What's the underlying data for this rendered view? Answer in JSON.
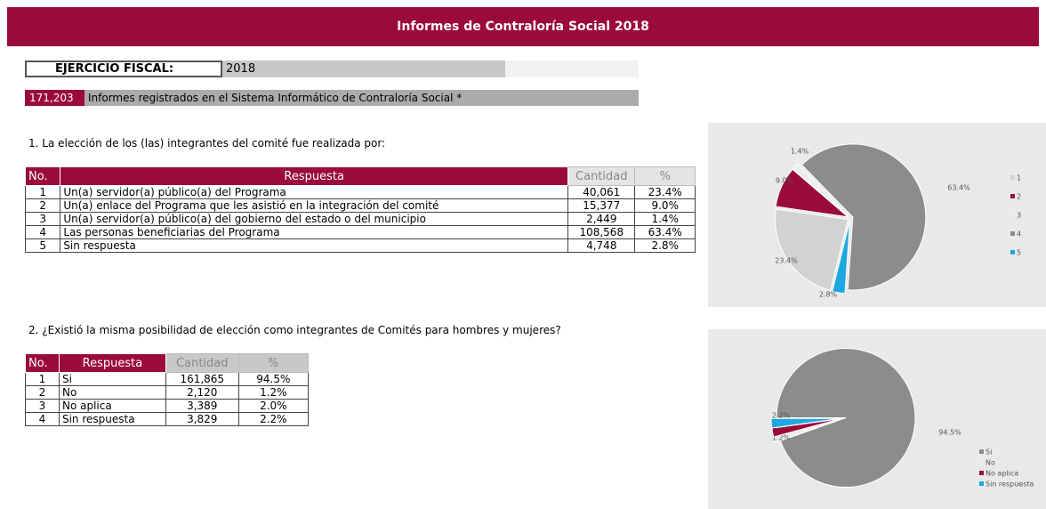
{
  "header": {
    "title": "Informes de Contraloría Social 2018"
  },
  "fiscal": {
    "label": "EJERCICIO FISCAL:",
    "year": "2018"
  },
  "registered": {
    "count": "171,203",
    "text": "Informes registrados en el Sistema Informático de Contraloría Social *"
  },
  "q1": {
    "question": "1. La elección de los (las) integrantes del comité fue realizada por:",
    "table": {
      "columns": [
        "No.",
        "Respuesta",
        "Cantidad",
        "%"
      ],
      "rows": [
        [
          "1",
          "Un(a) servidor(a) público(a) del Programa",
          "40,061",
          "23.4%"
        ],
        [
          "2",
          "Un(a) enlace del Programa que les asistió en la integración del comité",
          "15,377",
          "9.0%"
        ],
        [
          "3",
          "Un(a) servidor(a) público(a) del gobierno del estado o del municipio",
          "2,449",
          "1.4%"
        ],
        [
          "4",
          "Las personas beneficiarias del Programa",
          "108,568",
          "63.4%"
        ],
        [
          "5",
          "Sin respuesta",
          "4,748",
          "2.8%"
        ]
      ]
    },
    "chart": {
      "type": "pie",
      "categories": [
        "1",
        "2",
        "3",
        "4",
        "5"
      ],
      "values": [
        23.4,
        9.0,
        1.4,
        63.4,
        2.8
      ],
      "value_labels": [
        "23.4%",
        "9.0%",
        "1.4%",
        "63.4%",
        "2.8%"
      ],
      "colors": [
        "#d2d2d2",
        "#9b0b3a",
        "#ececec",
        "#8c8c8c",
        "#1ea7e0"
      ]
    }
  },
  "q2": {
    "question": "2. ¿Existió la misma posibilidad de elección como integrantes de Comités para hombres y mujeres?",
    "table": {
      "columns": [
        "No.",
        "Respuesta",
        "Cantidad",
        "%"
      ],
      "rows": [
        [
          "1",
          "Si",
          "161,865",
          "94.5%"
        ],
        [
          "2",
          "No",
          "2,120",
          "1.2%"
        ],
        [
          "3",
          "No aplica",
          "3,389",
          "2.0%"
        ],
        [
          "4",
          "Sin respuesta",
          "3,829",
          "2.2%"
        ]
      ]
    },
    "chart": {
      "type": "pie",
      "categories": [
        "Si",
        "No",
        "No aplica",
        "Sin respuesta"
      ],
      "values": [
        94.5,
        1.2,
        2.0,
        2.2
      ],
      "value_labels": [
        "94.5%",
        "1.2%",
        "2.0%",
        "2.2%"
      ],
      "colors": [
        "#8c8c8c",
        "#ececec",
        "#9b0b3a",
        "#1ea7e0"
      ]
    }
  }
}
